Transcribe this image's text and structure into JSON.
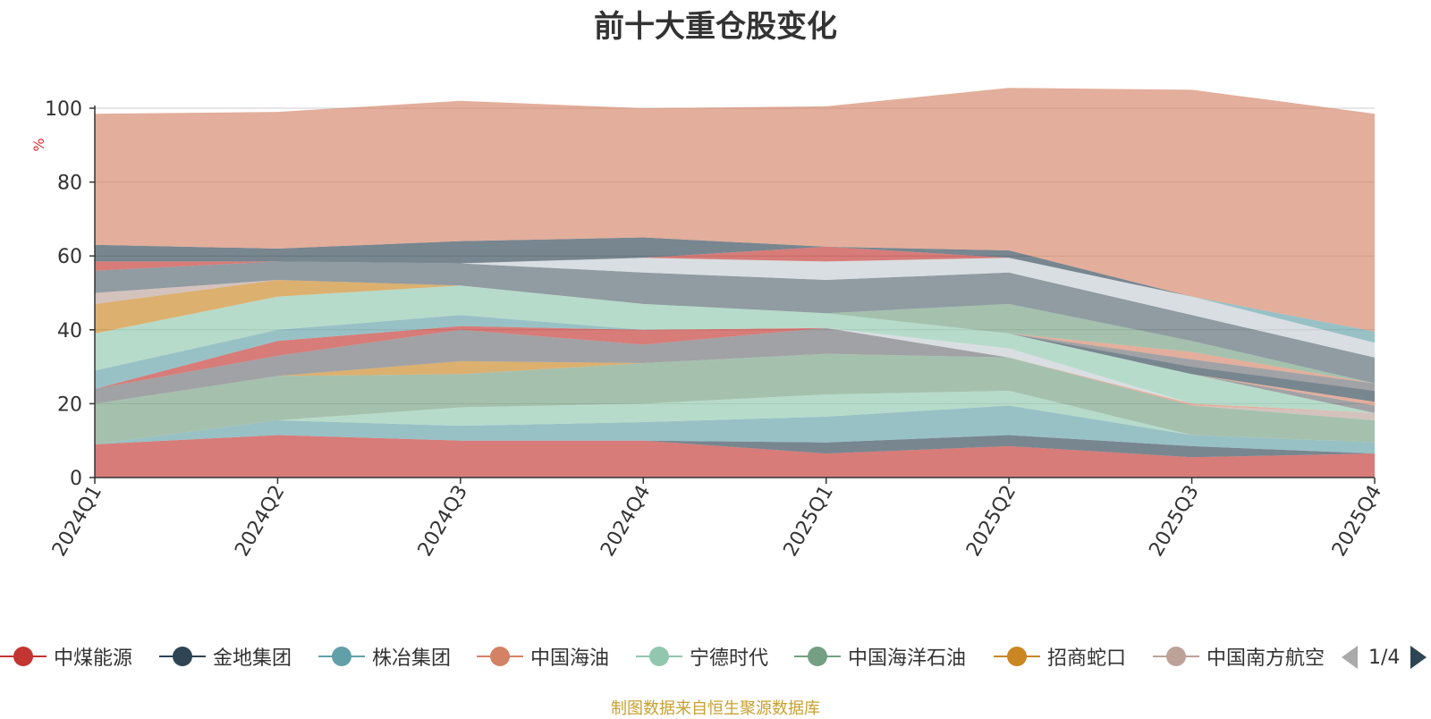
{
  "title": "前十大重仓股变化",
  "source_note": "制图数据来自恒生聚源数据库",
  "pager": {
    "text": "1/4"
  },
  "chart_data": {
    "type": "area",
    "stacked": true,
    "title": "前十大重仓股变化",
    "ylabel": "%",
    "xlabel": "",
    "ylim": [
      0,
      100
    ],
    "yticks": [
      0,
      20,
      40,
      60,
      80,
      100
    ],
    "x": [
      "2024Q1",
      "2024Q2",
      "2024Q3",
      "2024Q4",
      "2025Q1",
      "2025Q2",
      "2025Q3",
      "2025Q4"
    ],
    "legend_position": "bottom",
    "grid": true,
    "legend": [
      {
        "name": "中煤能源",
        "color": "#c23531"
      },
      {
        "name": "金地集团",
        "color": "#2f4554"
      },
      {
        "name": "株冶集团",
        "color": "#61a0a8"
      },
      {
        "name": "中国海油",
        "color": "#d48265"
      },
      {
        "name": "宁德时代",
        "color": "#91c7ae"
      },
      {
        "name": "中国海洋石油",
        "color": "#749f83"
      },
      {
        "name": "招商蛇口",
        "color": "#ca8622"
      },
      {
        "name": "中国南方航空",
        "color": "#bda29a"
      }
    ],
    "series": [
      {
        "color": "#c23531",
        "values": [
          9,
          11.5,
          10,
          10,
          6.5,
          8.5,
          5.5,
          6.5
        ]
      },
      {
        "color": "#2f4554",
        "values": [
          0,
          0,
          0,
          0,
          3,
          3,
          3,
          0
        ]
      },
      {
        "color": "#61a0a8",
        "values": [
          0,
          4,
          4,
          5,
          7,
          8,
          3,
          3
        ]
      },
      {
        "color": "#91c7ae",
        "values": [
          0,
          0,
          5,
          5,
          6,
          4,
          0,
          0
        ]
      },
      {
        "color": "#749f83",
        "values": [
          11,
          12,
          9,
          11,
          11,
          9,
          8,
          6
        ]
      },
      {
        "color": "#ca8622",
        "values": [
          0,
          0,
          3.5,
          0,
          0,
          0,
          0,
          0
        ]
      },
      {
        "color": "#6e7074",
        "values": [
          4,
          5.5,
          8.5,
          5,
          7,
          0,
          0,
          0
        ]
      },
      {
        "color": "#bda29a",
        "values": [
          0,
          0,
          0,
          0,
          0,
          0,
          0,
          2
        ]
      },
      {
        "color": "#c23531",
        "values": [
          0,
          4,
          1,
          4,
          0,
          0,
          0,
          0
        ]
      },
      {
        "color": "#61a0a8",
        "values": [
          5,
          3,
          3,
          0,
          0,
          0,
          0,
          0
        ]
      },
      {
        "color": "#d48265",
        "values": [
          0,
          0,
          0,
          0,
          0,
          0,
          0.5,
          0
        ]
      },
      {
        "color": "#c4ccd3",
        "values": [
          0,
          0,
          0,
          0,
          0,
          2.5,
          0,
          0
        ]
      },
      {
        "color": "#91c7ae",
        "values": [
          10,
          9,
          8,
          7,
          4,
          4,
          8,
          0
        ]
      },
      {
        "color": "#6e7074",
        "values": [
          0,
          0,
          0,
          0,
          0,
          0,
          0,
          2
        ]
      },
      {
        "color": "#d48265",
        "values": [
          0,
          0,
          0,
          0,
          0,
          0,
          0,
          1
        ]
      },
      {
        "color": "#2f4554",
        "values": [
          0,
          0,
          0,
          0,
          0,
          0,
          2,
          3
        ]
      },
      {
        "color": "#6e7074",
        "values": [
          0,
          0,
          0,
          0,
          0,
          0,
          2,
          2
        ]
      },
      {
        "color": "#d48265",
        "values": [
          0,
          0,
          0,
          0,
          0,
          0,
          2,
          0
        ]
      },
      {
        "color": "#749f83",
        "values": [
          0,
          0,
          0,
          0,
          0,
          8,
          3,
          0
        ]
      },
      {
        "color": "#ca8622",
        "values": [
          8,
          4.5,
          0,
          0,
          0,
          0,
          0,
          0
        ]
      },
      {
        "color": "#bda29a",
        "values": [
          3,
          0,
          0,
          0,
          0,
          0,
          0,
          0
        ]
      },
      {
        "color": "#546570",
        "values": [
          6,
          5,
          6,
          8.5,
          9,
          8.5,
          7,
          7
        ]
      },
      {
        "color": "#c4ccd3",
        "values": [
          0,
          0,
          0,
          4,
          5,
          4,
          5,
          4
        ]
      },
      {
        "color": "#c23531",
        "values": [
          2.5,
          0,
          0,
          0,
          4,
          0,
          0,
          0
        ]
      },
      {
        "color": "#2f4554",
        "values": [
          4.5,
          3.5,
          6,
          5.5,
          0,
          2,
          0,
          0
        ]
      },
      {
        "color": "#61a0a8",
        "values": [
          0,
          0,
          0,
          0,
          0,
          0,
          0,
          3
        ]
      },
      {
        "color": "#d48265",
        "values": [
          35.5,
          37,
          38,
          35,
          38,
          44,
          56,
          59
        ]
      },
      {
        "color": "#c4ccd3",
        "values": [
          0,
          0,
          0,
          0,
          0,
          0,
          0,
          0
        ]
      }
    ]
  }
}
